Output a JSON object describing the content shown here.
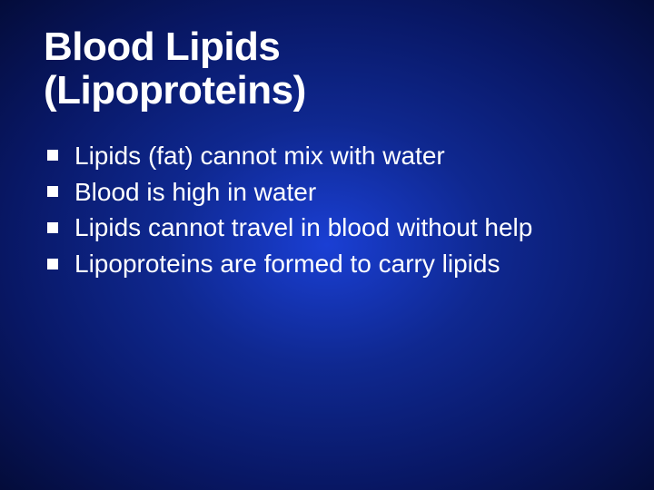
{
  "slide": {
    "title_line1": "Blood Lipids",
    "title_line2": "(Lipoproteins)",
    "title_fontsize": 44,
    "title_color": "#ffffff",
    "body_fontsize": 28,
    "body_color": "#ffffff",
    "bullet_color": "#ffffff",
    "bullet_size": 12,
    "background_gradient_center": "#1a3fd4",
    "background_gradient_mid": "#0f2890",
    "background_gradient_outer": "#081764",
    "background_gradient_edge": "#040c3a",
    "bullets": [
      "Lipids (fat) cannot mix with water",
      "Blood is high in water",
      "Lipids cannot travel in blood without help",
      "Lipoproteins are formed to carry lipids"
    ]
  }
}
